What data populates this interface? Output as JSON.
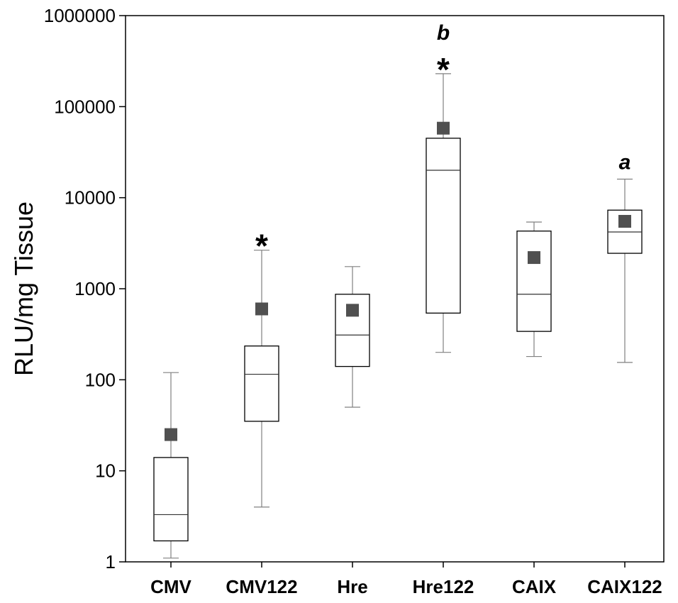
{
  "chart_data": {
    "type": "box",
    "title": "",
    "xlabel": "",
    "ylabel": "RLU/mg Tissue",
    "yscale": "log",
    "ylim": [
      1,
      1000000
    ],
    "yticks": [
      1,
      10,
      100,
      1000,
      10000,
      100000,
      1000000
    ],
    "ytick_labels": [
      "1",
      "10",
      "100",
      "1000",
      "10000",
      "100000",
      "1000000"
    ],
    "grid": false,
    "categories": [
      "CMV",
      "CMV122",
      "Hre",
      "Hre122",
      "CAIX",
      "CAIX122"
    ],
    "boxes": [
      {
        "category": "CMV",
        "whisker_low": 1.1,
        "q1": 1.7,
        "median": 3.3,
        "q3": 14,
        "whisker_high": 120,
        "mean": 25,
        "star": "",
        "letter": ""
      },
      {
        "category": "CMV122",
        "whisker_low": 4,
        "q1": 35,
        "median": 115,
        "q3": 235,
        "whisker_high": 2650,
        "mean": 600,
        "star": "*",
        "letter": ""
      },
      {
        "category": "Hre",
        "whisker_low": 50,
        "q1": 140,
        "median": 310,
        "q3": 870,
        "whisker_high": 1750,
        "mean": 580,
        "star": "",
        "letter": ""
      },
      {
        "category": "Hre122",
        "whisker_low": 200,
        "q1": 540,
        "median": 20000,
        "q3": 45000,
        "whisker_high": 230000,
        "mean": 58000,
        "star": "*",
        "letter": "b"
      },
      {
        "category": "CAIX",
        "whisker_low": 180,
        "q1": 340,
        "median": 870,
        "q3": 4300,
        "whisker_high": 5400,
        "mean": 2200,
        "star": "",
        "letter": ""
      },
      {
        "category": "CAIX122",
        "whisker_low": 155,
        "q1": 2450,
        "median": 4200,
        "q3": 7300,
        "whisker_high": 16000,
        "mean": 5500,
        "star": "",
        "letter": "a"
      }
    ],
    "colors": {
      "mean_marker": "#505050",
      "whisker": "#808080",
      "box_stroke": "#000000",
      "axis": "#000000"
    }
  }
}
